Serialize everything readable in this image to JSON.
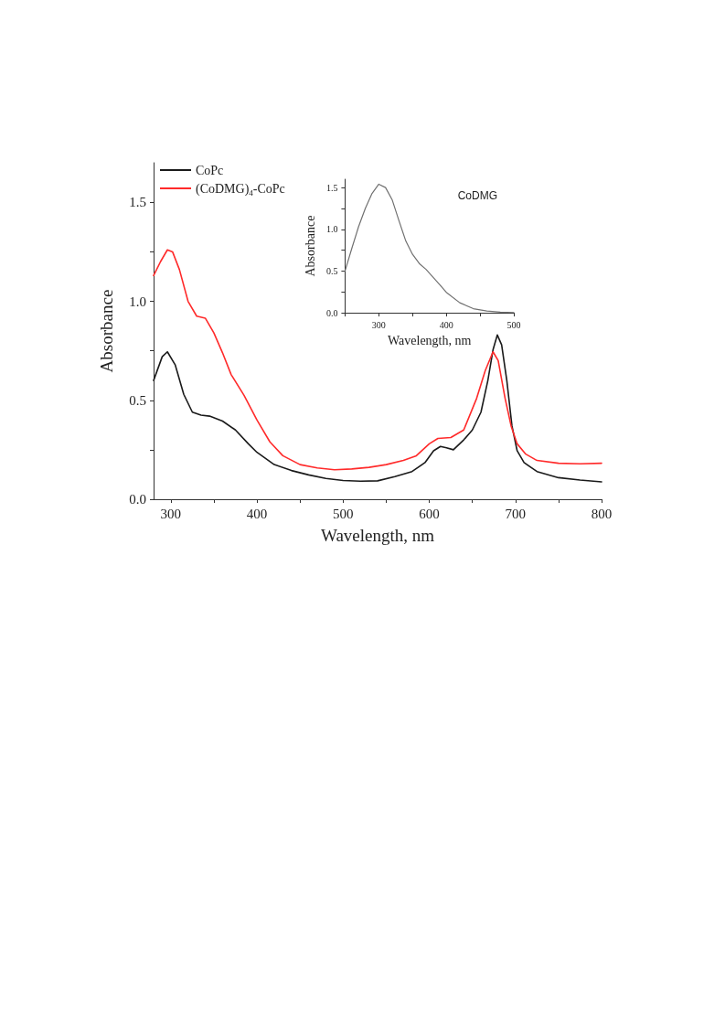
{
  "chart_data": [
    {
      "type": "line",
      "xlabel": "Wavelength, nm",
      "ylabel": "Absorbance",
      "xlim": [
        280,
        800
      ],
      "ylim": [
        0,
        1.7
      ],
      "xticks": [
        300,
        {
          "value": 350,
          "label": null
        },
        400,
        {
          "value": 450,
          "label": null
        },
        500,
        {
          "value": 550,
          "label": null
        },
        600,
        {
          "value": 650,
          "label": null
        },
        700,
        {
          "value": 750,
          "label": null
        },
        800
      ],
      "yticks": [
        {
          "value": 0,
          "label": "0.0"
        },
        {
          "value": 0.25,
          "label": null
        },
        {
          "value": 0.5,
          "label": "0.5"
        },
        {
          "value": 0.75,
          "label": null
        },
        {
          "value": 1,
          "label": "1.0"
        },
        {
          "value": 1.25,
          "label": null
        },
        {
          "value": 1.5,
          "label": "1.5"
        }
      ],
      "grid": false,
      "legend": "top left",
      "marker": "none",
      "line_style": "solid",
      "series": [
        {
          "name": "CoPc",
          "color": "#1a1a1a",
          "x": [
            280,
            290,
            296,
            305,
            315,
            325,
            335,
            345,
            360,
            375,
            390,
            400,
            420,
            440,
            460,
            480,
            500,
            520,
            540,
            560,
            580,
            595,
            605,
            613,
            620,
            628,
            640,
            650,
            660,
            668,
            674,
            679,
            684,
            690,
            696,
            702,
            710,
            725,
            750,
            775,
            800
          ],
          "values": [
            0.6,
            0.72,
            0.745,
            0.68,
            0.53,
            0.44,
            0.425,
            0.42,
            0.395,
            0.35,
            0.28,
            0.237,
            0.175,
            0.145,
            0.123,
            0.105,
            0.095,
            0.091,
            0.093,
            0.114,
            0.14,
            0.185,
            0.245,
            0.267,
            0.26,
            0.25,
            0.3,
            0.35,
            0.44,
            0.6,
            0.755,
            0.83,
            0.78,
            0.6,
            0.37,
            0.245,
            0.185,
            0.14,
            0.109,
            0.097,
            0.088
          ]
        },
        {
          "name": "(CoDMG)$_{4}$-CoPc",
          "color": "#ff2a2a",
          "x": [
            280,
            288,
            296,
            302,
            310,
            320,
            330,
            340,
            350,
            360,
            370,
            385,
            400,
            415,
            430,
            450,
            470,
            490,
            510,
            530,
            550,
            570,
            585,
            600,
            610,
            625,
            640,
            655,
            665,
            674,
            680,
            688,
            695,
            702,
            712,
            725,
            750,
            775,
            800
          ],
          "values": [
            1.13,
            1.2,
            1.26,
            1.25,
            1.16,
            1.0,
            0.925,
            0.915,
            0.84,
            0.74,
            0.63,
            0.525,
            0.4,
            0.29,
            0.22,
            0.175,
            0.158,
            0.149,
            0.153,
            0.161,
            0.175,
            0.196,
            0.22,
            0.28,
            0.307,
            0.312,
            0.35,
            0.51,
            0.65,
            0.745,
            0.7,
            0.51,
            0.37,
            0.28,
            0.228,
            0.196,
            0.182,
            0.179,
            0.182
          ]
        }
      ]
    },
    {
      "type": "line",
      "xlabel": "Wavelength, nm",
      "ylabel": "Absorbance",
      "xlim": [
        250,
        500
      ],
      "ylim": [
        0,
        1.6
      ],
      "xticks": [
        {
          "value": 250,
          "label": null
        },
        300,
        {
          "value": 350,
          "label": null
        },
        400,
        {
          "value": 450,
          "label": null
        },
        500
      ],
      "yticks": [
        {
          "value": 0,
          "label": "0.0"
        },
        {
          "value": 0.25,
          "label": null
        },
        {
          "value": 0.5,
          "label": "0.5"
        },
        {
          "value": 0.75,
          "label": null
        },
        {
          "value": 1,
          "label": "1.0"
        },
        {
          "value": 1.25,
          "label": null
        },
        {
          "value": 1.5,
          "label": "1.5"
        }
      ],
      "grid": false,
      "marker": "none",
      "line_style": "solid",
      "series": [
        {
          "name": "CoDMG",
          "color": "#707070",
          "x": [
            250,
            260,
            270,
            280,
            290,
            300,
            310,
            320,
            330,
            340,
            350,
            360,
            370,
            380,
            390,
            400,
            420,
            440,
            460,
            480,
            500
          ],
          "values": [
            0.5,
            0.77,
            1.03,
            1.25,
            1.43,
            1.54,
            1.5,
            1.35,
            1.1,
            0.86,
            0.7,
            0.59,
            0.52,
            0.43,
            0.34,
            0.245,
            0.12,
            0.05,
            0.022,
            0.008,
            0.004
          ]
        }
      ]
    }
  ]
}
